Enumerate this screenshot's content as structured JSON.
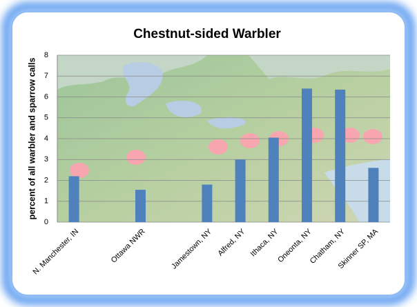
{
  "chart_data": {
    "type": "bar",
    "title": "Chestnut-sided Warbler",
    "y_label": "percent of all warbler and sparrow calls",
    "categories": [
      "N. Manchester, IN",
      null,
      "Ottawa NWR",
      null,
      "Jamestown, NY",
      "Alfred, NY",
      "Ithaca, NY",
      "Oneonta, NY",
      "Chatham, NY",
      "Skinner SP, MA"
    ],
    "values": [
      2.2,
      null,
      1.55,
      null,
      1.8,
      3.0,
      4.05,
      6.4,
      6.35,
      2.6
    ],
    "color": "#4f81bd",
    "ylim": [
      0,
      8
    ],
    "yticks": [
      0,
      1,
      2,
      3,
      4,
      5,
      6,
      7,
      8
    ],
    "grid": true
  }
}
